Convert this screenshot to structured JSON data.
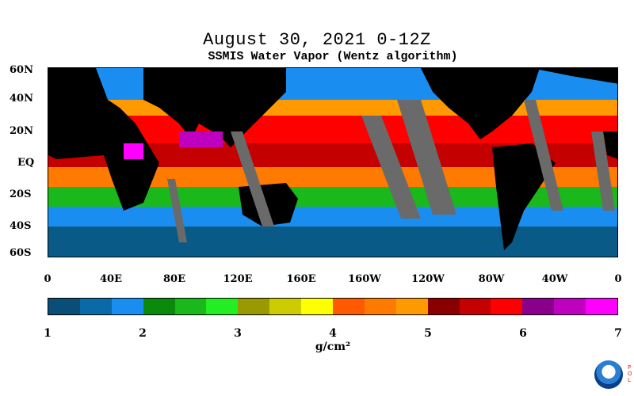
{
  "header": {
    "title": "August 30, 2021 0-12Z",
    "subtitle": "SSMIS Water Vapor (Wentz algorithm)"
  },
  "axes": {
    "lat_labels": [
      "60N",
      "40N",
      "20N",
      "EQ",
      "20S",
      "40S",
      "60S"
    ],
    "lon_labels": [
      "0",
      "40E",
      "80E",
      "120E",
      "160E",
      "160W",
      "120W",
      "80W",
      "40W",
      "0"
    ]
  },
  "colorbar": {
    "ticks": [
      "1",
      "2",
      "3",
      "4",
      "5",
      "6",
      "7"
    ],
    "unit": "g/cm²",
    "colors": [
      "#0a4e78",
      "#0a6aa8",
      "#1a8ef0",
      "#0a8a0a",
      "#1ab81a",
      "#22ee22",
      "#999900",
      "#cccc00",
      "#ffff00",
      "#ff5a00",
      "#ff7a00",
      "#ff9900",
      "#8a0000",
      "#c40000",
      "#ff0000",
      "#8a008a",
      "#c000c0",
      "#ff00ff"
    ]
  },
  "logo": {
    "brand": "NOAA",
    "side_text": "POL"
  },
  "colors": {
    "land": "#000000",
    "missing": "#6a6a6a",
    "ocean_low": "#0a5a87"
  }
}
